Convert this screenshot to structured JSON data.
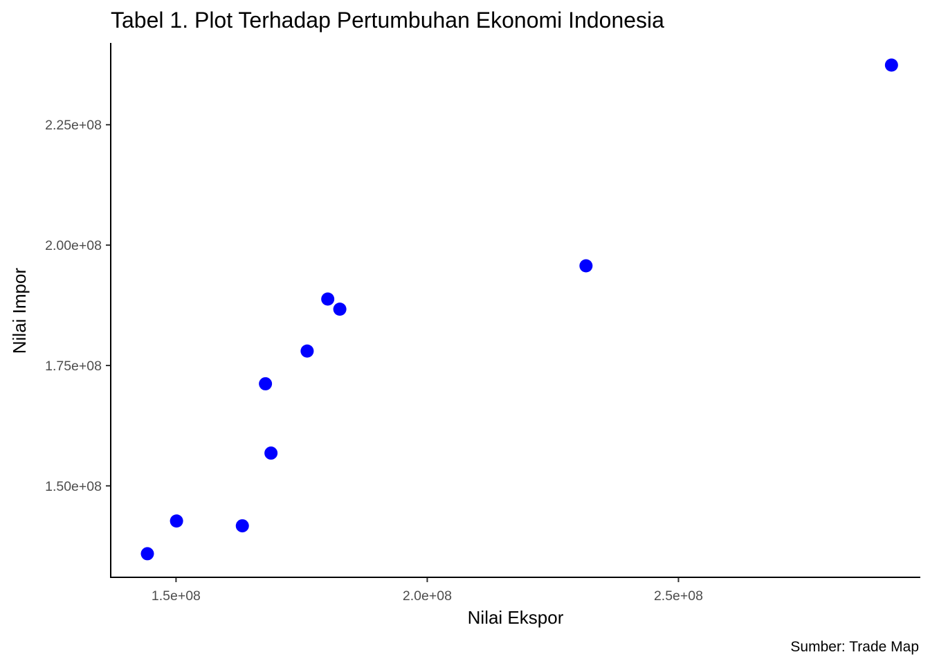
{
  "chart_data": {
    "type": "scatter",
    "title": "Tabel 1. Plot Terhadap Pertumbuhan Ekonomi Indonesia",
    "xlabel": "Nilai Ekspor",
    "ylabel": "Nilai Impor",
    "caption": "Sumber: Trade Map",
    "xlim": [
      137000000,
      298000000
    ],
    "ylim": [
      131000000,
      242000000
    ],
    "x_ticks": [
      {
        "value": 150000000,
        "label": "1.5e+08"
      },
      {
        "value": 200000000,
        "label": "2.0e+08"
      },
      {
        "value": 250000000,
        "label": "2.5e+08"
      }
    ],
    "y_ticks": [
      {
        "value": 150000000,
        "label": "1.50e+08"
      },
      {
        "value": 175000000,
        "label": "1.75e+08"
      },
      {
        "value": 200000000,
        "label": "2.00e+08"
      },
      {
        "value": 225000000,
        "label": "2.25e+08"
      }
    ],
    "points_color": "#0000ff",
    "grid": false,
    "points": [
      {
        "x": 144300000,
        "y": 135900000
      },
      {
        "x": 150100000,
        "y": 142700000
      },
      {
        "x": 163200000,
        "y": 141700000
      },
      {
        "x": 167800000,
        "y": 171200000
      },
      {
        "x": 168900000,
        "y": 156800000
      },
      {
        "x": 176100000,
        "y": 178000000
      },
      {
        "x": 180200000,
        "y": 188800000
      },
      {
        "x": 182600000,
        "y": 186700000
      },
      {
        "x": 231600000,
        "y": 195700000
      },
      {
        "x": 292400000,
        "y": 237400000
      }
    ]
  }
}
